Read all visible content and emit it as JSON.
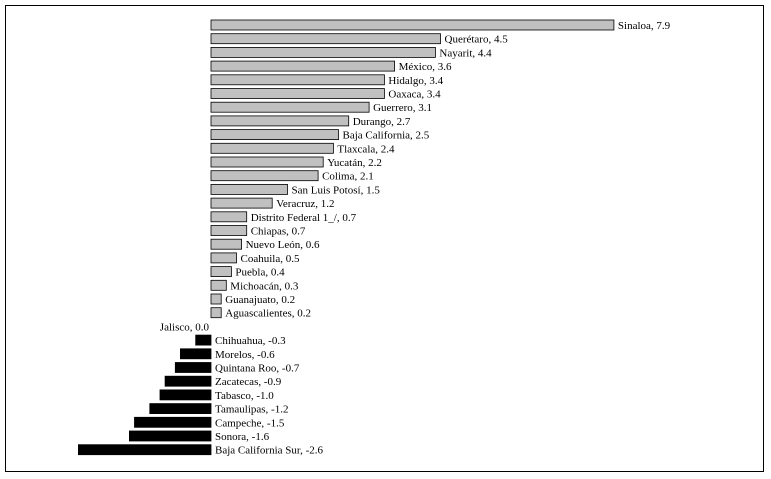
{
  "chart_data": {
    "type": "bar",
    "orientation": "horizontal",
    "title": "",
    "xlabel": "",
    "ylabel": "",
    "grid": false,
    "legend": "none",
    "colors": {
      "positive": "#c0c0c0",
      "negative": "#000000",
      "outline": "#000000"
    },
    "xlim": [
      -2.6,
      7.9
    ],
    "categories": [
      "Sinaloa",
      "Querétaro",
      "Nayarit",
      "México",
      "Hidalgo",
      "Oaxaca",
      "Guerrero",
      "Durango",
      "Baja California",
      "Tlaxcala",
      "Yucatán",
      "Colima",
      "San Luis Potosí",
      "Veracruz",
      "Distrito Federal 1_/",
      "Chiapas",
      "Nuevo León",
      "Coahuila",
      "Puebla",
      "Michoacán",
      "Guanajuato",
      "Aguascalientes",
      "Jalisco",
      "Chihuahua",
      "Morelos",
      "Quintana Roo",
      "Zacatecas",
      "Tabasco",
      "Tamaulipas",
      "Campeche",
      "Sonora",
      "Baja California Sur"
    ],
    "values": [
      7.9,
      4.5,
      4.4,
      3.6,
      3.4,
      3.4,
      3.1,
      2.7,
      2.5,
      2.4,
      2.2,
      2.1,
      1.5,
      1.2,
      0.7,
      0.7,
      0.6,
      0.5,
      0.4,
      0.3,
      0.2,
      0.2,
      0.0,
      -0.3,
      -0.6,
      -0.7,
      -0.9,
      -1.0,
      -1.2,
      -1.5,
      -1.6,
      -2.6
    ],
    "data_labels": [
      "Sinaloa, 7.9",
      "Querétaro, 4.5",
      "Nayarit, 4.4",
      "México, 3.6",
      "Hidalgo, 3.4",
      "Oaxaca, 3.4",
      "Guerrero, 3.1",
      "Durango, 2.7",
      "Baja California, 2.5",
      "Tlaxcala, 2.4",
      "Yucatán, 2.2",
      "Colima, 2.1",
      "San Luis Potosí, 1.5",
      "Veracruz, 1.2",
      "Distrito Federal 1_/, 0.7",
      "Chiapas, 0.7",
      "Nuevo León, 0.6",
      "Coahuila, 0.5",
      "Puebla, 0.4",
      "Michoacán, 0.3",
      "Guanajuato, 0.2",
      "Aguascalientes, 0.2",
      "Jalisco, 0.0",
      "Chihuahua, -0.3",
      "Morelos, -0.6",
      "Quintana Roo, -0.7",
      "Zacatecas, -0.9",
      "Tabasco, -1.0",
      "Tamaulipas, -1.2",
      "Campeche, -1.5",
      "Sonora, -1.6",
      "Baja California Sur, -2.6"
    ]
  }
}
